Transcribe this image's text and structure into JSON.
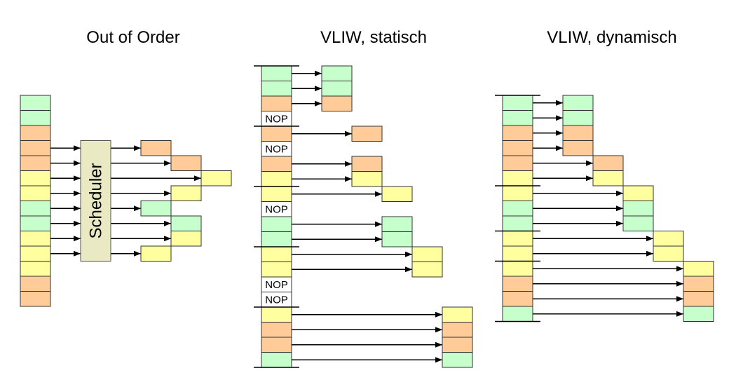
{
  "titles": {
    "ooo": "Out of Order",
    "vliw_static": "VLIW, statisch",
    "vliw_dynamic": "VLIW, dynamisch"
  },
  "scheduler_label": "Scheduler",
  "nop_label": "NOP",
  "colors": {
    "G": "#c6ffcc",
    "O": "#ffcc99",
    "Y": "#ffff9f",
    "scheduler": "#e9e9c3",
    "line": "#000000"
  },
  "ooo": {
    "instructions": [
      "G",
      "G",
      "O",
      "O",
      "O",
      "Y",
      "Y",
      "G",
      "G",
      "Y",
      "Y",
      "Y",
      "O",
      "O"
    ],
    "scheduled": [
      {
        "row": 3,
        "slot": 0
      },
      {
        "row": 4,
        "slot": 1
      },
      {
        "row": 5,
        "slot": 2
      },
      {
        "row": 6,
        "slot": 1
      },
      {
        "row": 7,
        "slot": 0
      },
      {
        "row": 8,
        "slot": 1
      },
      {
        "row": 9,
        "slot": 1
      },
      {
        "row": 10,
        "slot": 0
      }
    ]
  },
  "vliw_static": {
    "instructions": [
      "G",
      "G",
      "O",
      "NOP",
      "O",
      "NOP",
      "O",
      "Y",
      "Y",
      "NOP",
      "G",
      "G",
      "Y",
      "Y",
      "NOP",
      "NOP",
      "Y",
      "O",
      "O",
      "G"
    ],
    "bundle_boundaries": [
      0,
      4,
      8,
      12,
      16,
      20
    ],
    "slots": [
      0,
      0,
      0,
      null,
      1,
      null,
      1,
      1,
      2,
      null,
      2,
      2,
      3,
      3,
      null,
      null,
      4,
      4,
      4,
      4
    ]
  },
  "vliw_dynamic": {
    "instructions": [
      "G",
      "G",
      "O",
      "O",
      "O",
      "Y",
      "Y",
      "G",
      "G",
      "Y",
      "Y",
      "Y",
      "O",
      "O",
      "G"
    ],
    "bundle_boundaries": [
      0,
      6,
      9,
      11,
      15
    ],
    "slots": [
      0,
      0,
      0,
      0,
      1,
      1,
      2,
      2,
      2,
      3,
      3,
      4,
      4,
      4,
      4
    ]
  }
}
